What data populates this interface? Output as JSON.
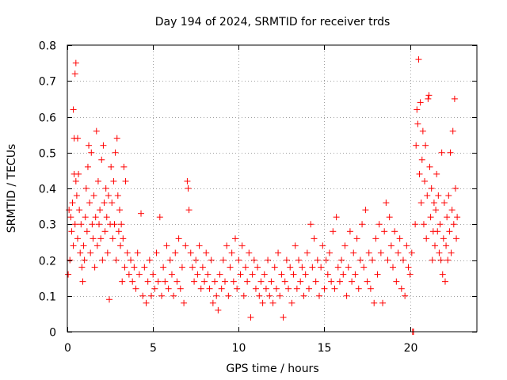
{
  "chart_data": {
    "type": "scatter",
    "title": "Day 194 of 2024, SRMTID for receiver trds",
    "xlabel": "GPS time / hours",
    "ylabel": "SRMTID / TECUs",
    "xlim": [
      0,
      23.9
    ],
    "ylim": [
      0,
      0.8
    ],
    "xticks": [
      0,
      5,
      10,
      15,
      20
    ],
    "xtick_labels": [
      "0",
      "5",
      "10",
      "15",
      "20"
    ],
    "yticks": [
      0,
      0.1,
      0.2,
      0.3,
      0.4,
      0.5,
      0.6,
      0.7,
      0.8
    ],
    "ytick_labels": [
      "0",
      "0.1",
      "0.2",
      "0.3",
      "0.4",
      "0.5",
      "0.6",
      "0.7",
      "0.8"
    ],
    "grid": true,
    "marker": "plus",
    "color": "#ff0000",
    "series": [
      {
        "name": "SRMTID",
        "points": [
          [
            0.05,
            0.16
          ],
          [
            0.1,
            0.34
          ],
          [
            0.15,
            0.2
          ],
          [
            0.2,
            0.32
          ],
          [
            0.25,
            0.28
          ],
          [
            0.3,
            0.36
          ],
          [
            0.35,
            0.24
          ],
          [
            0.35,
            0.62
          ],
          [
            0.4,
            0.44
          ],
          [
            0.4,
            0.54
          ],
          [
            0.45,
            0.3
          ],
          [
            0.45,
            0.72
          ],
          [
            0.5,
            0.75
          ],
          [
            0.5,
            0.42
          ],
          [
            0.55,
            0.38
          ],
          [
            0.6,
            0.54
          ],
          [
            0.6,
            0.26
          ],
          [
            0.65,
            0.44
          ],
          [
            0.7,
            0.34
          ],
          [
            0.75,
            0.22
          ],
          [
            0.8,
            0.3
          ],
          [
            0.85,
            0.18
          ],
          [
            0.9,
            0.14
          ],
          [
            0.95,
            0.24
          ],
          [
            1.0,
            0.2
          ],
          [
            1.05,
            0.32
          ],
          [
            1.1,
            0.4
          ],
          [
            1.15,
            0.28
          ],
          [
            1.2,
            0.46
          ],
          [
            1.25,
            0.52
          ],
          [
            1.3,
            0.36
          ],
          [
            1.35,
            0.22
          ],
          [
            1.4,
            0.5
          ],
          [
            1.45,
            0.3
          ],
          [
            1.5,
            0.26
          ],
          [
            1.55,
            0.38
          ],
          [
            1.6,
            0.18
          ],
          [
            1.65,
            0.32
          ],
          [
            1.7,
            0.56
          ],
          [
            1.75,
            0.24
          ],
          [
            1.8,
            0.42
          ],
          [
            1.85,
            0.3
          ],
          [
            1.9,
            0.34
          ],
          [
            1.95,
            0.26
          ],
          [
            2.0,
            0.48
          ],
          [
            2.05,
            0.2
          ],
          [
            2.1,
            0.52
          ],
          [
            2.15,
            0.36
          ],
          [
            2.2,
            0.28
          ],
          [
            2.25,
            0.4
          ],
          [
            2.3,
            0.32
          ],
          [
            2.35,
            0.22
          ],
          [
            2.4,
            0.38
          ],
          [
            2.45,
            0.09
          ],
          [
            2.5,
            0.3
          ],
          [
            2.55,
            0.46
          ],
          [
            2.6,
            0.36
          ],
          [
            2.65,
            0.26
          ],
          [
            2.7,
            0.42
          ],
          [
            2.75,
            0.3
          ],
          [
            2.8,
            0.5
          ],
          [
            2.85,
            0.2
          ],
          [
            2.9,
            0.54
          ],
          [
            2.95,
            0.38
          ],
          [
            3.0,
            0.28
          ],
          [
            3.05,
            0.34
          ],
          [
            3.1,
            0.24
          ],
          [
            3.15,
            0.3
          ],
          [
            3.2,
            0.14
          ],
          [
            3.25,
            0.26
          ],
          [
            3.3,
            0.46
          ],
          [
            3.35,
            0.18
          ],
          [
            3.4,
            0.42
          ],
          [
            3.5,
            0.22
          ],
          [
            3.6,
            0.16
          ],
          [
            3.7,
            0.2
          ],
          [
            3.8,
            0.14
          ],
          [
            3.9,
            0.18
          ],
          [
            4.0,
            0.12
          ],
          [
            4.1,
            0.22
          ],
          [
            4.2,
            0.16
          ],
          [
            4.3,
            0.33
          ],
          [
            4.4,
            0.1
          ],
          [
            4.5,
            0.18
          ],
          [
            4.6,
            0.08
          ],
          [
            4.7,
            0.14
          ],
          [
            4.8,
            0.2
          ],
          [
            4.9,
            0.1
          ],
          [
            5.0,
            0.16
          ],
          [
            5.1,
            0.12
          ],
          [
            5.2,
            0.22
          ],
          [
            5.3,
            0.14
          ],
          [
            5.4,
            0.32
          ],
          [
            5.5,
            0.1
          ],
          [
            5.6,
            0.18
          ],
          [
            5.7,
            0.14
          ],
          [
            5.8,
            0.24
          ],
          [
            5.9,
            0.12
          ],
          [
            6.0,
            0.2
          ],
          [
            6.1,
            0.16
          ],
          [
            6.2,
            0.1
          ],
          [
            6.3,
            0.22
          ],
          [
            6.4,
            0.14
          ],
          [
            6.5,
            0.26
          ],
          [
            6.6,
            0.12
          ],
          [
            6.7,
            0.18
          ],
          [
            6.8,
            0.08
          ],
          [
            6.9,
            0.24
          ],
          [
            7.0,
            0.42
          ],
          [
            7.05,
            0.4
          ],
          [
            7.1,
            0.34
          ],
          [
            7.2,
            0.22
          ],
          [
            7.3,
            0.18
          ],
          [
            7.4,
            0.14
          ],
          [
            7.5,
            0.2
          ],
          [
            7.6,
            0.16
          ],
          [
            7.7,
            0.24
          ],
          [
            7.8,
            0.12
          ],
          [
            7.9,
            0.18
          ],
          [
            8.0,
            0.14
          ],
          [
            8.1,
            0.22
          ],
          [
            8.2,
            0.16
          ],
          [
            8.3,
            0.12
          ],
          [
            8.4,
            0.2
          ],
          [
            8.5,
            0.08
          ],
          [
            8.6,
            0.14
          ],
          [
            8.7,
            0.1
          ],
          [
            8.8,
            0.06
          ],
          [
            8.9,
            0.16
          ],
          [
            9.0,
            0.12
          ],
          [
            9.1,
            0.2
          ],
          [
            9.2,
            0.14
          ],
          [
            9.3,
            0.24
          ],
          [
            9.4,
            0.1
          ],
          [
            9.5,
            0.18
          ],
          [
            9.6,
            0.22
          ],
          [
            9.7,
            0.14
          ],
          [
            9.8,
            0.26
          ],
          [
            9.9,
            0.12
          ],
          [
            10.0,
            0.2
          ],
          [
            10.1,
            0.16
          ],
          [
            10.2,
            0.24
          ],
          [
            10.3,
            0.1
          ],
          [
            10.4,
            0.18
          ],
          [
            10.5,
            0.14
          ],
          [
            10.6,
            0.22
          ],
          [
            10.7,
            0.04
          ],
          [
            10.8,
            0.16
          ],
          [
            10.9,
            0.2
          ],
          [
            11.0,
            0.12
          ],
          [
            11.1,
            0.18
          ],
          [
            11.2,
            0.1
          ],
          [
            11.3,
            0.14
          ],
          [
            11.4,
            0.08
          ],
          [
            11.5,
            0.16
          ],
          [
            11.6,
            0.12
          ],
          [
            11.7,
            0.2
          ],
          [
            11.8,
            0.1
          ],
          [
            11.9,
            0.14
          ],
          [
            12.0,
            0.08
          ],
          [
            12.1,
            0.18
          ],
          [
            12.2,
            0.12
          ],
          [
            12.3,
            0.22
          ],
          [
            12.4,
            0.1
          ],
          [
            12.5,
            0.16
          ],
          [
            12.6,
            0.04
          ],
          [
            12.7,
            0.14
          ],
          [
            12.8,
            0.2
          ],
          [
            12.9,
            0.12
          ],
          [
            13.0,
            0.18
          ],
          [
            13.1,
            0.08
          ],
          [
            13.2,
            0.16
          ],
          [
            13.3,
            0.24
          ],
          [
            13.4,
            0.12
          ],
          [
            13.5,
            0.2
          ],
          [
            13.6,
            0.14
          ],
          [
            13.7,
            0.18
          ],
          [
            13.8,
            0.1
          ],
          [
            13.9,
            0.16
          ],
          [
            14.0,
            0.22
          ],
          [
            14.1,
            0.12
          ],
          [
            14.2,
            0.3
          ],
          [
            14.3,
            0.18
          ],
          [
            14.4,
            0.26
          ],
          [
            14.5,
            0.14
          ],
          [
            14.6,
            0.2
          ],
          [
            14.7,
            0.1
          ],
          [
            14.8,
            0.18
          ],
          [
            14.9,
            0.24
          ],
          [
            15.0,
            0.12
          ],
          [
            15.1,
            0.2
          ],
          [
            15.2,
            0.16
          ],
          [
            15.3,
            0.22
          ],
          [
            15.4,
            0.14
          ],
          [
            15.5,
            0.28
          ],
          [
            15.6,
            0.12
          ],
          [
            15.7,
            0.32
          ],
          [
            15.8,
            0.18
          ],
          [
            15.9,
            0.14
          ],
          [
            16.0,
            0.2
          ],
          [
            16.1,
            0.16
          ],
          [
            16.2,
            0.24
          ],
          [
            16.3,
            0.1
          ],
          [
            16.4,
            0.18
          ],
          [
            16.5,
            0.28
          ],
          [
            16.6,
            0.14
          ],
          [
            16.7,
            0.22
          ],
          [
            16.8,
            0.16
          ],
          [
            16.9,
            0.26
          ],
          [
            17.0,
            0.12
          ],
          [
            17.1,
            0.2
          ],
          [
            17.2,
            0.3
          ],
          [
            17.3,
            0.18
          ],
          [
            17.4,
            0.34
          ],
          [
            17.5,
            0.14
          ],
          [
            17.6,
            0.22
          ],
          [
            17.7,
            0.12
          ],
          [
            17.8,
            0.2
          ],
          [
            17.9,
            0.08
          ],
          [
            18.0,
            0.26
          ],
          [
            18.1,
            0.16
          ],
          [
            18.2,
            0.3
          ],
          [
            18.3,
            0.22
          ],
          [
            18.4,
            0.08
          ],
          [
            18.5,
            0.28
          ],
          [
            18.6,
            0.36
          ],
          [
            18.7,
            0.2
          ],
          [
            18.8,
            0.32
          ],
          [
            18.9,
            0.24
          ],
          [
            19.0,
            0.18
          ],
          [
            19.1,
            0.28
          ],
          [
            19.2,
            0.14
          ],
          [
            19.3,
            0.22
          ],
          [
            19.4,
            0.26
          ],
          [
            19.5,
            0.12
          ],
          [
            19.6,
            0.2
          ],
          [
            19.7,
            0.1
          ],
          [
            19.8,
            0.24
          ],
          [
            19.9,
            0.18
          ],
          [
            20.0,
            0.16
          ],
          [
            20.1,
            0.22
          ],
          [
            20.15,
            0.0
          ],
          [
            20.2,
            0.0
          ],
          [
            20.3,
            0.3
          ],
          [
            20.35,
            0.52
          ],
          [
            20.4,
            0.62
          ],
          [
            20.45,
            0.58
          ],
          [
            20.5,
            0.76
          ],
          [
            20.55,
            0.44
          ],
          [
            20.6,
            0.64
          ],
          [
            20.65,
            0.36
          ],
          [
            20.7,
            0.48
          ],
          [
            20.75,
            0.56
          ],
          [
            20.8,
            0.3
          ],
          [
            20.85,
            0.42
          ],
          [
            20.9,
            0.52
          ],
          [
            20.95,
            0.26
          ],
          [
            21.0,
            0.38
          ],
          [
            21.05,
            0.65
          ],
          [
            21.1,
            0.66
          ],
          [
            21.15,
            0.46
          ],
          [
            21.2,
            0.32
          ],
          [
            21.25,
            0.4
          ],
          [
            21.3,
            0.2
          ],
          [
            21.35,
            0.28
          ],
          [
            21.4,
            0.36
          ],
          [
            21.45,
            0.24
          ],
          [
            21.5,
            0.34
          ],
          [
            21.55,
            0.44
          ],
          [
            21.6,
            0.28
          ],
          [
            21.65,
            0.38
          ],
          [
            21.7,
            0.22
          ],
          [
            21.75,
            0.3
          ],
          [
            21.8,
            0.2
          ],
          [
            21.85,
            0.5
          ],
          [
            21.9,
            0.16
          ],
          [
            21.95,
            0.26
          ],
          [
            22.0,
            0.36
          ],
          [
            22.05,
            0.14
          ],
          [
            22.1,
            0.24
          ],
          [
            22.15,
            0.32
          ],
          [
            22.2,
            0.2
          ],
          [
            22.25,
            0.38
          ],
          [
            22.3,
            0.28
          ],
          [
            22.35,
            0.5
          ],
          [
            22.4,
            0.22
          ],
          [
            22.45,
            0.34
          ],
          [
            22.5,
            0.56
          ],
          [
            22.55,
            0.3
          ],
          [
            22.6,
            0.65
          ],
          [
            22.65,
            0.4
          ],
          [
            22.7,
            0.26
          ],
          [
            22.75,
            0.32
          ]
        ]
      }
    ]
  }
}
